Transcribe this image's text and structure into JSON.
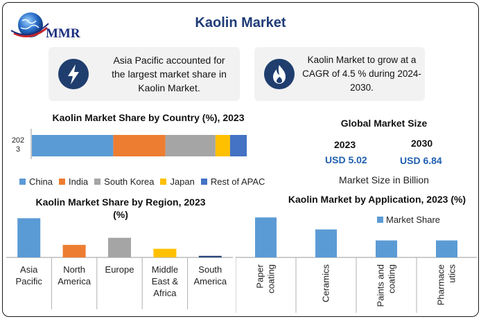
{
  "header": {
    "title": "Kaolin Market",
    "logo_text": "MMR"
  },
  "cards": [
    {
      "icon": "lightning-icon",
      "text_lines": [
        "Asia Pacific accounted for",
        "the largest market share in",
        "Kaolin Market."
      ]
    },
    {
      "icon": "flame-icon",
      "text_lines": [
        "Kaolin Market to grow at a",
        "CAGR of 4.5 % during 2024-",
        "2030."
      ]
    }
  ],
  "global_market_size": {
    "title": "Global Market Size",
    "year_a": "2023",
    "value_a": "USD 5.02",
    "year_b": "2030",
    "value_b": "USD 6.84",
    "note": "Market Size in Billion"
  },
  "chart_data": [
    {
      "type": "bar",
      "orientation": "horizontal-stacked",
      "title": "Kaolin Market Share by Country  (%), 2023",
      "category_label_lines": [
        "202",
        "3"
      ],
      "series": [
        {
          "name": "China",
          "value": 39,
          "color": "#5b9bd5"
        },
        {
          "name": "India",
          "value": 25,
          "color": "#ed7d31"
        },
        {
          "name": "South Korea",
          "value": 24,
          "color": "#a5a5a5"
        },
        {
          "name": "Japan",
          "value": 7,
          "color": "#ffc000"
        },
        {
          "name": "Rest of APAC",
          "value": 8,
          "color": "#4472c4"
        }
      ],
      "legend": "bottom"
    },
    {
      "type": "bar",
      "title_lines": [
        "Kaolin Market Share by Region, 2023",
        "(%)"
      ],
      "categories": [
        {
          "name": "Asia Pacific",
          "label_lines": [
            "Asia",
            "Pacific"
          ]
        },
        {
          "name": "North America",
          "label_lines": [
            "North",
            "America"
          ]
        },
        {
          "name": "Europe",
          "label_lines": [
            "Europe"
          ]
        },
        {
          "name": "Middle East & Africa",
          "label_lines": [
            "Middle",
            "East &",
            "Africa"
          ]
        },
        {
          "name": "South America",
          "label_lines": [
            "South",
            "America"
          ]
        }
      ],
      "values": [
        50,
        16,
        25,
        11,
        2
      ],
      "colors": [
        "#5b9bd5",
        "#ed7d31",
        "#a5a5a5",
        "#ffc000",
        "#264478"
      ],
      "ylim": [
        0,
        60
      ],
      "grid": false
    },
    {
      "type": "bar",
      "title": "Kaolin Market by Application, 2023 (%)",
      "categories": [
        {
          "name": "Paper coating",
          "label_lines": [
            "Paper",
            "coating"
          ]
        },
        {
          "name": "Ceramics",
          "label_lines": [
            "Ceramics"
          ]
        },
        {
          "name": "Paints and coating",
          "label_lines": [
            "Paints and",
            "coating"
          ]
        },
        {
          "name": "Pharmaceutics",
          "label_lines": [
            "Pharmace",
            "utics"
          ]
        }
      ],
      "series": [
        {
          "name": "Market Share",
          "values": [
            40,
            28,
            17,
            17
          ],
          "color": "#5b9bd5"
        }
      ],
      "ylim": [
        0,
        45
      ],
      "legend": "top-right",
      "grid": false
    }
  ]
}
